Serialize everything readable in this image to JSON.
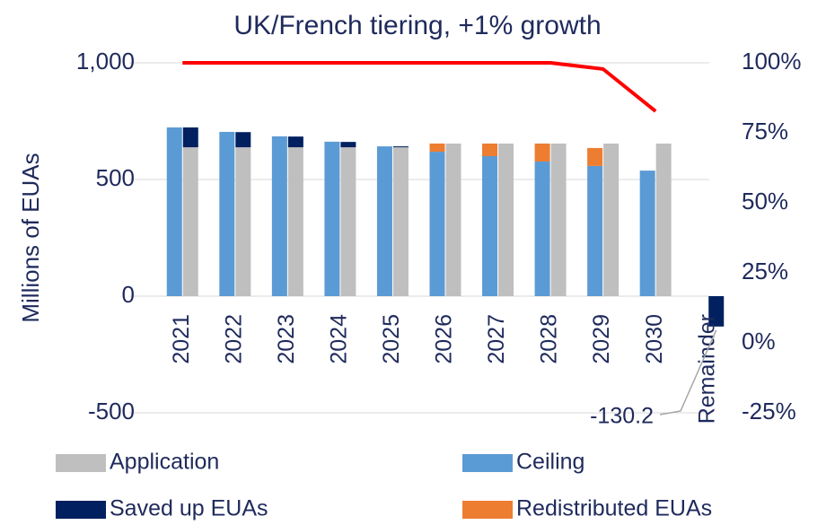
{
  "chart_data": {
    "type": "bar",
    "title": "UK/French tiering, +1% growth",
    "ylabel": "Millions of EUAs",
    "categories": [
      "2021",
      "2022",
      "2023",
      "2024",
      "2025",
      "2026",
      "2027",
      "2028",
      "2029",
      "2030",
      "Remainder"
    ],
    "series": [
      {
        "name": "Application",
        "color": "#bfbfbf",
        "values": [
          638,
          638,
          638,
          638,
          638,
          654,
          654,
          654,
          654,
          654,
          null
        ]
      },
      {
        "name": "Ceiling",
        "color": "#5b9bd5",
        "values": [
          723,
          704,
          685,
          662,
          642,
          619,
          600,
          577,
          558,
          538,
          null
        ]
      },
      {
        "name": "Saved up EUAs",
        "color": "#002060",
        "values": [
          85,
          65,
          46,
          23,
          4,
          null,
          null,
          null,
          null,
          null,
          -130.2
        ]
      },
      {
        "name": "Redistributed EUAs",
        "color": "#ed7d31",
        "values": [
          null,
          null,
          null,
          null,
          null,
          35,
          54,
          77,
          77,
          null,
          null
        ]
      },
      {
        "type": "line",
        "axis": "y2",
        "color": "#ff0000",
        "values": [
          100,
          100,
          100,
          100,
          100,
          100,
          100,
          100,
          97.8,
          82.7,
          null
        ]
      }
    ],
    "ylim": [
      -500,
      1000
    ],
    "yticks": [
      {
        "value": 1000,
        "label": "1,000"
      },
      500,
      0,
      -500
    ],
    "y2lim": [
      -25,
      100
    ],
    "y2ticks": [
      {
        "value": 100,
        "label": "100%"
      },
      {
        "value": 75,
        "label": "75%"
      },
      {
        "value": 50,
        "label": "50%"
      },
      {
        "value": 25,
        "label": "25%"
      },
      {
        "value": 0,
        "label": "0%"
      },
      {
        "value": -25,
        "label": "-25%"
      }
    ],
    "grid": true
  }
}
